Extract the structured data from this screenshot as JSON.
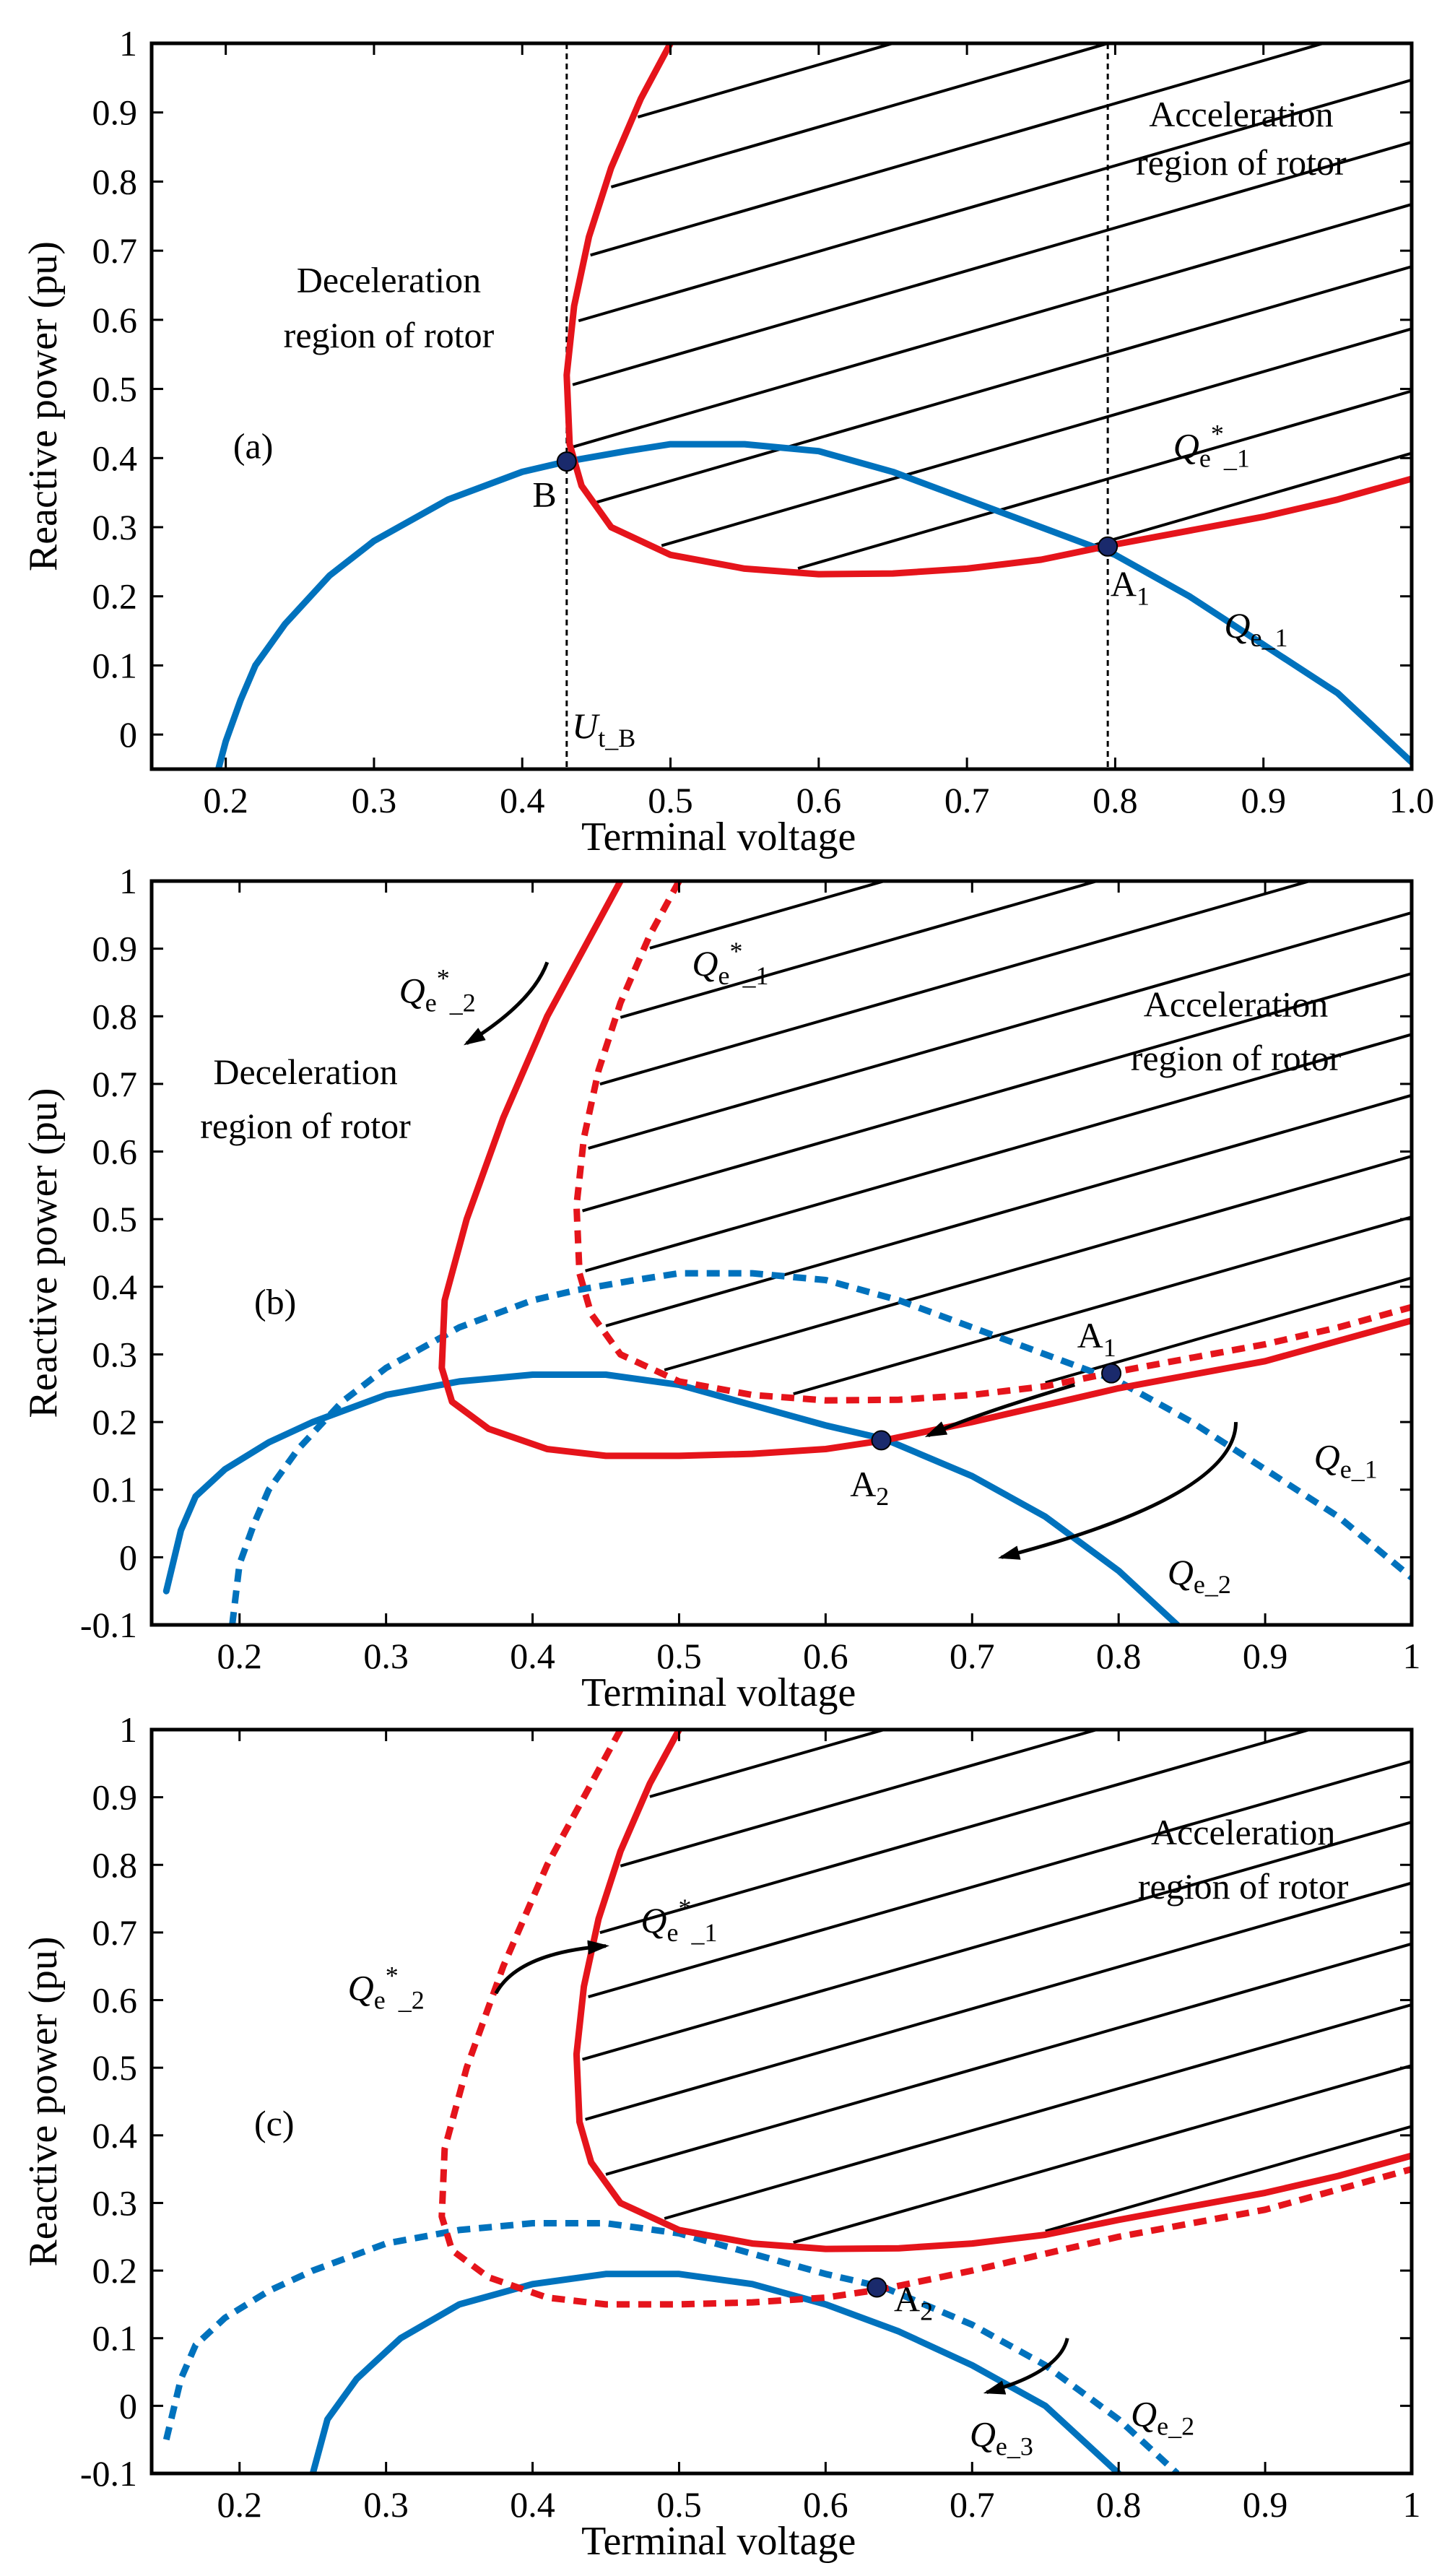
{
  "colors": {
    "blue": "#0072BD",
    "red": "#E5141B",
    "black": "#000000"
  },
  "chart_data": [
    {
      "id": "a",
      "type": "line",
      "panel_label": "(a)",
      "xlabel": "Terminal voltage",
      "ylabel": "Reactive power (pu)",
      "xlim": [
        0.15,
        1.0
      ],
      "ylim": [
        -0.05,
        1.0
      ],
      "xticks": [
        "0.2",
        "0.3",
        "0.4",
        "0.5",
        "0.6",
        "0.7",
        "0.8",
        "0.9",
        "1.0"
      ],
      "xtick_values": [
        0.2,
        0.3,
        0.4,
        0.5,
        0.6,
        0.7,
        0.8,
        0.9,
        1.0
      ],
      "yticks": [
        "0",
        "0.1",
        "0.2",
        "0.3",
        "0.4",
        "0.5",
        "0.6",
        "0.7",
        "0.8",
        "0.9",
        "1"
      ],
      "ytick_values": [
        0,
        0.1,
        0.2,
        0.3,
        0.4,
        0.5,
        0.6,
        0.7,
        0.8,
        0.9,
        1.0
      ],
      "hatch_region": "acceleration",
      "hatch_base_curve": "Qe_star_1",
      "vlines": [
        0.43,
        0.795
      ],
      "series": [
        {
          "name": "Qe_1",
          "color": "blue",
          "dash": false,
          "x": [
            0.195,
            0.2,
            0.21,
            0.22,
            0.24,
            0.27,
            0.3,
            0.35,
            0.4,
            0.43,
            0.47,
            0.5,
            0.55,
            0.6,
            0.65,
            0.7,
            0.75,
            0.8,
            0.85,
            0.9,
            0.95,
            1.0
          ],
          "y": [
            -0.05,
            -0.01,
            0.05,
            0.1,
            0.16,
            0.23,
            0.28,
            0.34,
            0.38,
            0.395,
            0.41,
            0.42,
            0.42,
            0.41,
            0.38,
            0.34,
            0.3,
            0.26,
            0.2,
            0.13,
            0.06,
            -0.04
          ]
        },
        {
          "name": "Qe_star_1",
          "color": "red",
          "dash": false,
          "x": [
            0.5,
            0.48,
            0.46,
            0.445,
            0.435,
            0.43,
            0.432,
            0.44,
            0.46,
            0.5,
            0.55,
            0.6,
            0.65,
            0.7,
            0.75,
            0.8,
            0.85,
            0.9,
            0.95,
            1.0
          ],
          "y": [
            1.0,
            0.92,
            0.82,
            0.72,
            0.62,
            0.52,
            0.42,
            0.36,
            0.3,
            0.26,
            0.24,
            0.232,
            0.233,
            0.24,
            0.253,
            0.275,
            0.295,
            0.315,
            0.34,
            0.37
          ]
        }
      ],
      "points": [
        {
          "label": "B",
          "x": 0.43,
          "y": 0.395
        },
        {
          "label": "A1",
          "x": 0.795,
          "y": 0.272
        }
      ],
      "annotations": [
        {
          "text": "Deceleration",
          "x": 0.31,
          "y": 0.64,
          "anchor": "middle"
        },
        {
          "text": "region of rotor",
          "x": 0.31,
          "y": 0.56,
          "anchor": "middle"
        },
        {
          "text": "Acceleration",
          "x": 0.885,
          "y": 0.88,
          "anchor": "middle"
        },
        {
          "text": "region of rotor",
          "x": 0.885,
          "y": 0.81,
          "anchor": "middle"
        },
        {
          "text": "(a)",
          "x": 0.205,
          "y": 0.4,
          "anchor": "start"
        },
        {
          "text": "B",
          "x": 0.415,
          "y": 0.33,
          "anchor": "middle"
        },
        {
          "text": "A1",
          "x": 0.81,
          "y": 0.2,
          "anchor": "middle"
        },
        {
          "text": "Qe*_1",
          "x": 0.865,
          "y": 0.4,
          "anchor": "middle"
        },
        {
          "text": "Qe_1",
          "x": 0.895,
          "y": 0.14,
          "anchor": "middle"
        },
        {
          "text": "Ut_B",
          "x": 0.455,
          "y": -0.005,
          "anchor": "middle"
        }
      ],
      "arrows": []
    },
    {
      "id": "b",
      "type": "line",
      "panel_label": "(b)",
      "xlabel": "Terminal voltage",
      "ylabel": "Reactive power (pu)",
      "xlim": [
        0.14,
        1.0
      ],
      "ylim": [
        -0.1,
        1.0
      ],
      "xticks": [
        "0.2",
        "0.3",
        "0.4",
        "0.5",
        "0.6",
        "0.7",
        "0.8",
        "0.9",
        "1"
      ],
      "xtick_values": [
        0.2,
        0.3,
        0.4,
        0.5,
        0.6,
        0.7,
        0.8,
        0.9,
        1.0
      ],
      "yticks": [
        "-0.1",
        "0",
        "0.1",
        "0.2",
        "0.3",
        "0.4",
        "0.5",
        "0.6",
        "0.7",
        "0.8",
        "0.9",
        "1"
      ],
      "ytick_values": [
        -0.1,
        0,
        0.1,
        0.2,
        0.3,
        0.4,
        0.5,
        0.6,
        0.7,
        0.8,
        0.9,
        1.0
      ],
      "hatch_region": "acceleration",
      "hatch_base_curve": "Qe_star_1",
      "vlines": [],
      "series": [
        {
          "name": "Qe_1",
          "color": "blue",
          "dash": true,
          "x": [
            0.195,
            0.2,
            0.21,
            0.22,
            0.24,
            0.27,
            0.3,
            0.35,
            0.4,
            0.43,
            0.47,
            0.5,
            0.55,
            0.6,
            0.65,
            0.7,
            0.75,
            0.8,
            0.85,
            0.9,
            0.95,
            1.0
          ],
          "y": [
            -0.1,
            -0.01,
            0.05,
            0.1,
            0.16,
            0.23,
            0.28,
            0.34,
            0.38,
            0.395,
            0.41,
            0.42,
            0.42,
            0.41,
            0.38,
            0.34,
            0.3,
            0.26,
            0.2,
            0.13,
            0.06,
            -0.03
          ]
        },
        {
          "name": "Qe_2",
          "color": "blue",
          "dash": false,
          "x": [
            0.15,
            0.16,
            0.17,
            0.19,
            0.22,
            0.25,
            0.3,
            0.35,
            0.4,
            0.45,
            0.5,
            0.55,
            0.6,
            0.64,
            0.7,
            0.75,
            0.8,
            0.84
          ],
          "y": [
            -0.05,
            0.04,
            0.09,
            0.13,
            0.17,
            0.2,
            0.24,
            0.26,
            0.27,
            0.27,
            0.255,
            0.225,
            0.195,
            0.175,
            0.12,
            0.06,
            -0.02,
            -0.1
          ]
        },
        {
          "name": "Qe_star_1",
          "color": "red",
          "dash": true,
          "x": [
            0.5,
            0.48,
            0.46,
            0.445,
            0.435,
            0.43,
            0.432,
            0.44,
            0.46,
            0.5,
            0.55,
            0.6,
            0.65,
            0.7,
            0.75,
            0.8,
            0.85,
            0.9,
            0.95,
            1.0
          ],
          "y": [
            1.0,
            0.92,
            0.82,
            0.72,
            0.62,
            0.52,
            0.42,
            0.36,
            0.3,
            0.26,
            0.24,
            0.232,
            0.233,
            0.24,
            0.253,
            0.275,
            0.295,
            0.315,
            0.34,
            0.37
          ]
        },
        {
          "name": "Qe_star_2",
          "color": "red",
          "dash": false,
          "x": [
            0.46,
            0.44,
            0.41,
            0.38,
            0.355,
            0.34,
            0.338,
            0.345,
            0.37,
            0.41,
            0.45,
            0.5,
            0.55,
            0.6,
            0.64,
            0.7,
            0.75,
            0.8,
            0.85,
            0.9,
            0.95,
            1.0
          ],
          "y": [
            1.0,
            0.92,
            0.8,
            0.65,
            0.5,
            0.38,
            0.28,
            0.23,
            0.19,
            0.16,
            0.15,
            0.15,
            0.153,
            0.16,
            0.173,
            0.2,
            0.225,
            0.25,
            0.27,
            0.29,
            0.32,
            0.35
          ]
        }
      ],
      "points": [
        {
          "label": "A1",
          "x": 0.795,
          "y": 0.272
        },
        {
          "label": "A2",
          "x": 0.638,
          "y": 0.173
        }
      ],
      "annotations": [
        {
          "text": "Deceleration",
          "x": 0.245,
          "y": 0.7,
          "anchor": "middle"
        },
        {
          "text": "region of rotor",
          "x": 0.245,
          "y": 0.62,
          "anchor": "middle"
        },
        {
          "text": "Acceleration",
          "x": 0.88,
          "y": 0.8,
          "anchor": "middle"
        },
        {
          "text": "region of rotor",
          "x": 0.88,
          "y": 0.72,
          "anchor": "middle"
        },
        {
          "text": "(b)",
          "x": 0.21,
          "y": 0.36,
          "anchor": "start"
        },
        {
          "text": "A1",
          "x": 0.785,
          "y": 0.31,
          "anchor": "middle"
        },
        {
          "text": "A2",
          "x": 0.63,
          "y": 0.09,
          "anchor": "middle"
        },
        {
          "text": "Qe*_2",
          "x": 0.335,
          "y": 0.82,
          "anchor": "middle"
        },
        {
          "text": "Qe*_1",
          "x": 0.535,
          "y": 0.86,
          "anchor": "middle"
        },
        {
          "text": "Qe_1",
          "x": 0.955,
          "y": 0.13,
          "anchor": "middle"
        },
        {
          "text": "Qe_2",
          "x": 0.855,
          "y": -0.04,
          "anchor": "middle"
        }
      ],
      "arrows": [
        {
          "path": [
            [
              0.41,
              0.88
            ],
            [
              0.4,
              0.82
            ],
            [
              0.355,
              0.76
            ]
          ]
        },
        {
          "path": [
            [
              0.77,
              0.255
            ],
            [
              0.7,
              0.21
            ],
            [
              0.67,
              0.18
            ]
          ]
        },
        {
          "path": [
            [
              0.88,
              0.2
            ],
            [
              0.88,
              0.09
            ],
            [
              0.72,
              0.0
            ]
          ]
        }
      ]
    },
    {
      "id": "c",
      "type": "line",
      "panel_label": "(c)",
      "xlabel": "Terminal voltage",
      "ylabel": "Reactive power (pu)",
      "xlim": [
        0.14,
        1.0
      ],
      "ylim": [
        -0.1,
        1.0
      ],
      "xticks": [
        "0.2",
        "0.3",
        "0.4",
        "0.5",
        "0.6",
        "0.7",
        "0.8",
        "0.9",
        "1"
      ],
      "xtick_values": [
        0.2,
        0.3,
        0.4,
        0.5,
        0.6,
        0.7,
        0.8,
        0.9,
        1.0
      ],
      "yticks": [
        "-0.1",
        "0",
        "0.1",
        "0.2",
        "0.3",
        "0.4",
        "0.5",
        "0.6",
        "0.7",
        "0.8",
        "0.9",
        "1"
      ],
      "ytick_values": [
        -0.1,
        0,
        0.1,
        0.2,
        0.3,
        0.4,
        0.5,
        0.6,
        0.7,
        0.8,
        0.9,
        1.0
      ],
      "hatch_region": "acceleration",
      "hatch_base_curve": "Qe_star_1",
      "vlines": [],
      "series": [
        {
          "name": "Qe_2",
          "color": "blue",
          "dash": true,
          "x": [
            0.15,
            0.16,
            0.17,
            0.19,
            0.22,
            0.25,
            0.3,
            0.35,
            0.4,
            0.45,
            0.5,
            0.55,
            0.6,
            0.64,
            0.7,
            0.75,
            0.8,
            0.84
          ],
          "y": [
            -0.05,
            0.04,
            0.09,
            0.13,
            0.17,
            0.2,
            0.24,
            0.26,
            0.27,
            0.27,
            0.255,
            0.225,
            0.195,
            0.175,
            0.12,
            0.06,
            -0.02,
            -0.1
          ]
        },
        {
          "name": "Qe_3",
          "color": "blue",
          "dash": false,
          "x": [
            0.25,
            0.26,
            0.28,
            0.31,
            0.35,
            0.4,
            0.45,
            0.5,
            0.55,
            0.6,
            0.65,
            0.7,
            0.75,
            0.8
          ],
          "y": [
            -0.1,
            -0.02,
            0.04,
            0.1,
            0.15,
            0.18,
            0.195,
            0.195,
            0.18,
            0.15,
            0.11,
            0.06,
            0.0,
            -0.1
          ]
        },
        {
          "name": "Qe_star_1",
          "color": "red",
          "dash": false,
          "x": [
            0.5,
            0.48,
            0.46,
            0.445,
            0.435,
            0.43,
            0.432,
            0.44,
            0.46,
            0.5,
            0.55,
            0.6,
            0.65,
            0.7,
            0.75,
            0.8,
            0.85,
            0.9,
            0.95,
            1.0
          ],
          "y": [
            1.0,
            0.92,
            0.82,
            0.72,
            0.62,
            0.52,
            0.42,
            0.36,
            0.3,
            0.26,
            0.24,
            0.232,
            0.233,
            0.24,
            0.253,
            0.275,
            0.295,
            0.315,
            0.34,
            0.37
          ]
        },
        {
          "name": "Qe_star_2",
          "color": "red",
          "dash": true,
          "x": [
            0.46,
            0.44,
            0.41,
            0.38,
            0.355,
            0.34,
            0.338,
            0.345,
            0.37,
            0.41,
            0.45,
            0.5,
            0.55,
            0.6,
            0.64,
            0.7,
            0.75,
            0.8,
            0.85,
            0.9,
            0.95,
            1.0
          ],
          "y": [
            1.0,
            0.92,
            0.8,
            0.65,
            0.5,
            0.38,
            0.28,
            0.23,
            0.19,
            0.16,
            0.15,
            0.15,
            0.153,
            0.16,
            0.173,
            0.2,
            0.225,
            0.25,
            0.27,
            0.29,
            0.32,
            0.35
          ]
        }
      ],
      "points": [
        {
          "label": "A2",
          "x": 0.635,
          "y": 0.175
        }
      ],
      "annotations": [
        {
          "text": "Acceleration",
          "x": 0.885,
          "y": 0.83,
          "anchor": "middle"
        },
        {
          "text": "region of rotor",
          "x": 0.885,
          "y": 0.75,
          "anchor": "middle"
        },
        {
          "text": "(c)",
          "x": 0.21,
          "y": 0.4,
          "anchor": "start"
        },
        {
          "text": "A2",
          "x": 0.66,
          "y": 0.14,
          "anchor": "middle"
        },
        {
          "text": "Qe*_2",
          "x": 0.3,
          "y": 0.6,
          "anchor": "middle"
        },
        {
          "text": "Qe*_1",
          "x": 0.5,
          "y": 0.7,
          "anchor": "middle"
        },
        {
          "text": "Qe_3",
          "x": 0.72,
          "y": -0.06,
          "anchor": "middle"
        },
        {
          "text": "Qe_2",
          "x": 0.83,
          "y": -0.03,
          "anchor": "middle"
        }
      ],
      "arrows": [
        {
          "path": [
            [
              0.375,
              0.61
            ],
            [
              0.39,
              0.67
            ],
            [
              0.45,
              0.68
            ]
          ]
        },
        {
          "path": [
            [
              0.765,
              0.1
            ],
            [
              0.76,
              0.05
            ],
            [
              0.71,
              0.02
            ]
          ]
        }
      ]
    }
  ]
}
